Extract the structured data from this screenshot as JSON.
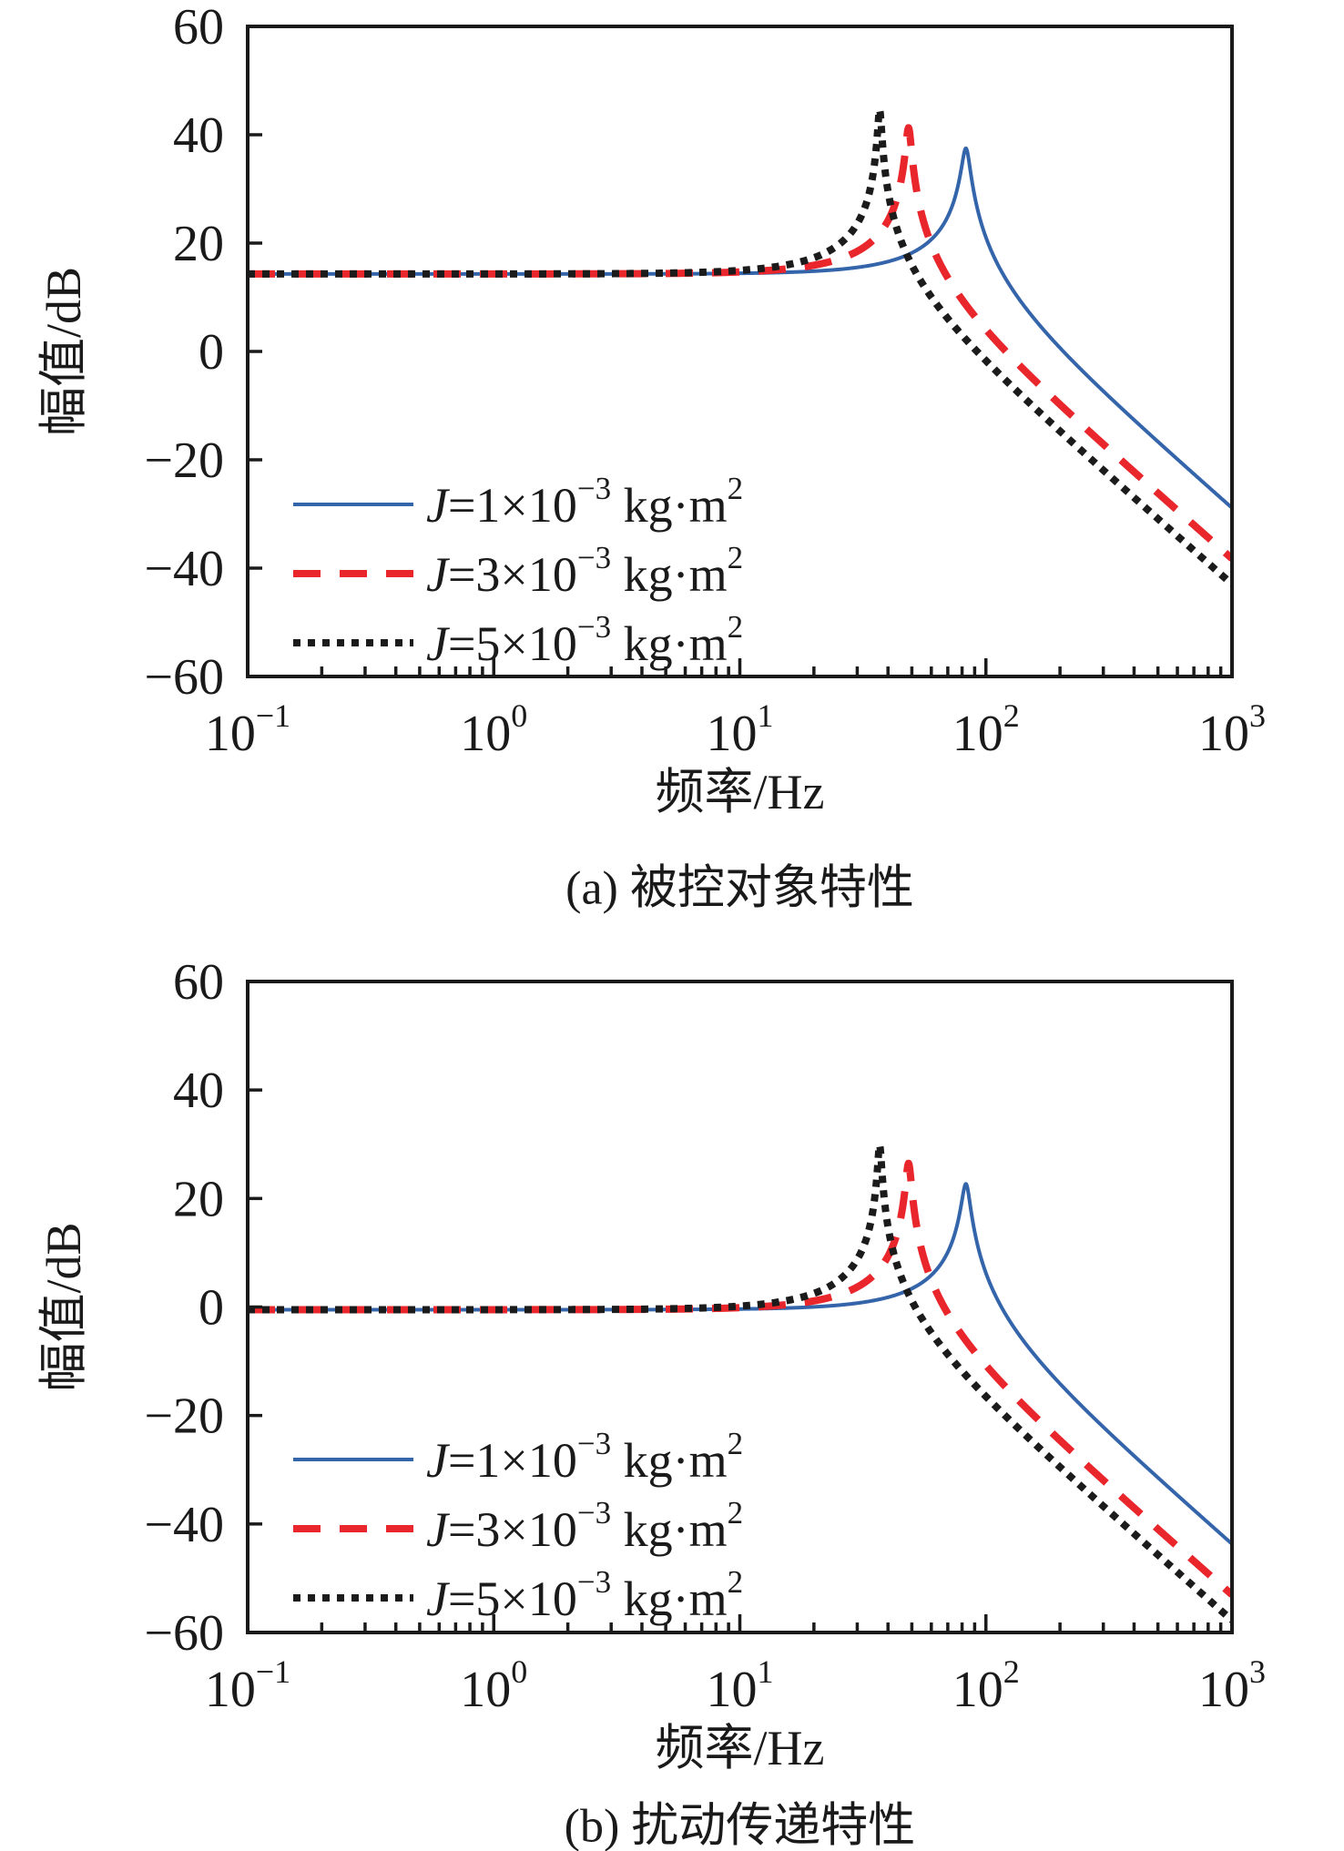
{
  "figure": {
    "background": "#ffffff",
    "text_color": "#1a1a1a",
    "axis_color": "#1a1a1a"
  },
  "chart_data": [
    {
      "id": "a",
      "type": "line",
      "title": "(a) 被控对象特性",
      "xlabel": "频率/Hz",
      "ylabel": "幅值/dB",
      "x_scale": "log",
      "x_range_hz": [
        0.1,
        1000
      ],
      "ylim": [
        -60,
        60
      ],
      "grid": false,
      "legend_position": "lower-left-inside",
      "x_ticks": [
        {
          "exp": -1,
          "parts": [
            {
              "t": "10"
            },
            {
              "t": "−1",
              "sup": true
            }
          ]
        },
        {
          "exp": 0,
          "parts": [
            {
              "t": "10"
            },
            {
              "t": "0",
              "sup": true
            }
          ]
        },
        {
          "exp": 1,
          "parts": [
            {
              "t": "10"
            },
            {
              "t": "1",
              "sup": true
            }
          ]
        },
        {
          "exp": 2,
          "parts": [
            {
              "t": "10"
            },
            {
              "t": "2",
              "sup": true
            }
          ]
        },
        {
          "exp": 3,
          "parts": [
            {
              "t": "10"
            },
            {
              "t": "3",
              "sup": true
            }
          ]
        }
      ],
      "x_minor_mults": [
        2,
        3,
        4,
        5,
        6,
        7,
        8,
        9
      ],
      "y_ticks": [
        {
          "v": 60,
          "label": "60"
        },
        {
          "v": 40,
          "label": "40"
        },
        {
          "v": 20,
          "label": "20"
        },
        {
          "v": 0,
          "label": "0"
        },
        {
          "v": -20,
          "label": "−20"
        },
        {
          "v": -40,
          "label": "−40"
        },
        {
          "v": -60,
          "label": "−60"
        }
      ],
      "series": [
        {
          "name": "J=1×10⁻³ kg·m²",
          "label_parts": [
            {
              "t": "J",
              "i": true
            },
            {
              "t": "=1×10"
            },
            {
              "t": "−3",
              "sup": true
            },
            {
              "t": " kg·m"
            },
            {
              "t": "2",
              "sup": true
            }
          ],
          "color": "#3465aa",
          "line_style": "solid",
          "line_width": 4,
          "model": "second_order_resonance",
          "fn_hz": 83,
          "zeta": 0.0346,
          "flat_db": 14.3,
          "peak_db": 37.5,
          "db_at_1kHz": -28.9
        },
        {
          "name": "J=3×10⁻³ kg·m²",
          "label_parts": [
            {
              "t": "J",
              "i": true
            },
            {
              "t": "=3×10"
            },
            {
              "t": "−3",
              "sup": true
            },
            {
              "t": " kg·m"
            },
            {
              "t": "2",
              "sup": true
            }
          ],
          "color": "#e8262b",
          "line_style": "dashed",
          "line_width": 8,
          "model": "second_order_resonance",
          "fn_hz": 48.5,
          "zeta": 0.0224,
          "flat_db": 14.3,
          "peak_db": 41.2,
          "db_at_1kHz": -38.3
        },
        {
          "name": "J=5×10⁻³ kg·m²",
          "label_parts": [
            {
              "t": "J",
              "i": true
            },
            {
              "t": "=5×10"
            },
            {
              "t": "−3",
              "sup": true
            },
            {
              "t": " kg·m"
            },
            {
              "t": "2",
              "sup": true
            }
          ],
          "color": "#1b1b1b",
          "line_style": "dotted",
          "line_width": 8,
          "model": "second_order_resonance",
          "fn_hz": 37,
          "zeta": 0.0152,
          "flat_db": 14.3,
          "peak_db": 44.7,
          "db_at_1kHz": -42.9
        }
      ]
    },
    {
      "id": "b",
      "type": "line",
      "title": "(b) 扰动传递特性",
      "xlabel": "频率/Hz",
      "ylabel": "幅值/dB",
      "x_scale": "log",
      "x_range_hz": [
        0.1,
        1000
      ],
      "ylim": [
        -60,
        60
      ],
      "grid": false,
      "legend_position": "lower-left-inside",
      "x_ticks": [
        {
          "exp": -1,
          "parts": [
            {
              "t": "10"
            },
            {
              "t": "−1",
              "sup": true
            }
          ]
        },
        {
          "exp": 0,
          "parts": [
            {
              "t": "10"
            },
            {
              "t": "0",
              "sup": true
            }
          ]
        },
        {
          "exp": 1,
          "parts": [
            {
              "t": "10"
            },
            {
              "t": "1",
              "sup": true
            }
          ]
        },
        {
          "exp": 2,
          "parts": [
            {
              "t": "10"
            },
            {
              "t": "2",
              "sup": true
            }
          ]
        },
        {
          "exp": 3,
          "parts": [
            {
              "t": "10"
            },
            {
              "t": "3",
              "sup": true
            }
          ]
        }
      ],
      "x_minor_mults": [
        2,
        3,
        4,
        5,
        6,
        7,
        8,
        9
      ],
      "y_ticks": [
        {
          "v": 60,
          "label": "60"
        },
        {
          "v": 40,
          "label": "40"
        },
        {
          "v": 20,
          "label": "20"
        },
        {
          "v": 0,
          "label": "0"
        },
        {
          "v": -20,
          "label": "−20"
        },
        {
          "v": -40,
          "label": "−40"
        },
        {
          "v": -60,
          "label": "−60"
        }
      ],
      "series": [
        {
          "name": "J=1×10⁻³ kg·m²",
          "label_parts": [
            {
              "t": "J",
              "i": true
            },
            {
              "t": "=1×10"
            },
            {
              "t": "−3",
              "sup": true
            },
            {
              "t": " kg·m"
            },
            {
              "t": "2",
              "sup": true
            }
          ],
          "color": "#3465aa",
          "line_style": "solid",
          "line_width": 4,
          "model": "second_order_resonance",
          "fn_hz": 83,
          "zeta": 0.0346,
          "flat_db": -0.5,
          "peak_db": 22.8,
          "db_at_1kHz": -43.7
        },
        {
          "name": "J=3×10⁻³ kg·m²",
          "label_parts": [
            {
              "t": "J",
              "i": true
            },
            {
              "t": "=3×10"
            },
            {
              "t": "−3",
              "sup": true
            },
            {
              "t": " kg·m"
            },
            {
              "t": "2",
              "sup": true
            }
          ],
          "color": "#e8262b",
          "line_style": "dashed",
          "line_width": 8,
          "model": "second_order_resonance",
          "fn_hz": 48.5,
          "zeta": 0.0224,
          "flat_db": -0.5,
          "peak_db": 26.5,
          "db_at_1kHz": -53.1
        },
        {
          "name": "J=5×10⁻³ kg·m²",
          "label_parts": [
            {
              "t": "J",
              "i": true
            },
            {
              "t": "=5×10"
            },
            {
              "t": "−3",
              "sup": true
            },
            {
              "t": " kg·m"
            },
            {
              "t": "2",
              "sup": true
            }
          ],
          "color": "#1b1b1b",
          "line_style": "dotted",
          "line_width": 8,
          "model": "second_order_resonance",
          "fn_hz": 37,
          "zeta": 0.0152,
          "flat_db": -0.5,
          "peak_db": 29.8,
          "db_at_1kHz": -57.7
        }
      ]
    }
  ]
}
